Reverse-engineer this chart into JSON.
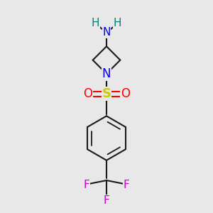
{
  "bg_color": "#e8e8e8",
  "bond_color": "#1a1a1a",
  "bond_width": 1.5,
  "N_color": "#0000ee",
  "O_color": "#ff0000",
  "S_color": "#cccc00",
  "F_color": "#cc00cc",
  "H_color": "#008080",
  "figsize": [
    3.0,
    3.0
  ],
  "dpi": 100,
  "xlim": [
    0,
    10
  ],
  "ylim": [
    0,
    10
  ],
  "Nx": 5.0,
  "Ny": 6.55,
  "C1x": 4.35,
  "C1y": 7.2,
  "C3x": 5.0,
  "C3y": 7.85,
  "C2x": 5.65,
  "C2y": 7.2,
  "Sx": 5.0,
  "Sy": 5.6,
  "O1x": 4.1,
  "O1y": 5.6,
  "O2x": 5.9,
  "O2y": 5.6,
  "bcx": 5.0,
  "bcy": 3.5,
  "br": 1.05,
  "Ctx": 5.0,
  "Cty": 1.5,
  "F1x": 4.05,
  "F1y": 1.28,
  "F2x": 5.95,
  "F2y": 1.28,
  "F3x": 5.0,
  "F3y": 0.55
}
